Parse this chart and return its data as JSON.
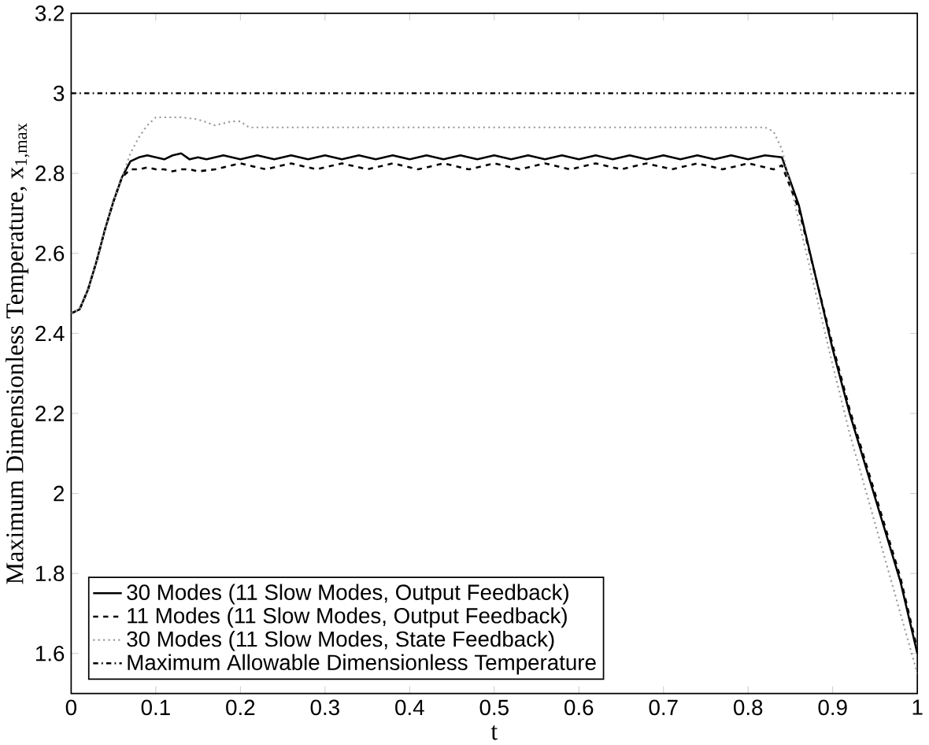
{
  "chart_data": {
    "type": "line",
    "xlabel": "t",
    "ylabel": "Maximum Dimensionless Temperature, x$_{1,max}$",
    "xlim": [
      0,
      1
    ],
    "ylim": [
      1.5,
      3.2
    ],
    "xticks": [
      0,
      0.1,
      0.2,
      0.3,
      0.4,
      0.5,
      0.6,
      0.7,
      0.8,
      0.9,
      1
    ],
    "yticks": [
      1.6,
      1.8,
      2,
      2.2,
      2.4,
      2.6,
      2.8,
      3,
      3.2
    ],
    "grid": false,
    "legend": "bottom left",
    "series": [
      {
        "name": "30 Modes (11 Slow Modes, Output Feedback)",
        "color": "#000000",
        "line_style": "solid",
        "x": [
          0,
          0.01,
          0.02,
          0.03,
          0.04,
          0.05,
          0.06,
          0.07,
          0.08,
          0.09,
          0.1,
          0.11,
          0.12,
          0.13,
          0.14,
          0.15,
          0.16,
          0.18,
          0.2,
          0.22,
          0.24,
          0.26,
          0.28,
          0.3,
          0.32,
          0.34,
          0.36,
          0.38,
          0.4,
          0.42,
          0.44,
          0.46,
          0.48,
          0.5,
          0.52,
          0.54,
          0.56,
          0.58,
          0.6,
          0.62,
          0.64,
          0.66,
          0.68,
          0.7,
          0.72,
          0.74,
          0.76,
          0.78,
          0.8,
          0.82,
          0.84,
          0.86,
          0.88,
          0.9,
          0.92,
          0.94,
          0.96,
          0.98,
          1
        ],
        "values": [
          2.45,
          2.46,
          2.51,
          2.58,
          2.66,
          2.73,
          2.79,
          2.83,
          2.84,
          2.845,
          2.84,
          2.835,
          2.845,
          2.85,
          2.835,
          2.84,
          2.835,
          2.845,
          2.835,
          2.845,
          2.835,
          2.845,
          2.835,
          2.845,
          2.835,
          2.845,
          2.835,
          2.845,
          2.835,
          2.845,
          2.835,
          2.845,
          2.835,
          2.845,
          2.835,
          2.845,
          2.835,
          2.845,
          2.835,
          2.845,
          2.835,
          2.845,
          2.835,
          2.845,
          2.835,
          2.845,
          2.835,
          2.845,
          2.835,
          2.845,
          2.84,
          2.72,
          2.54,
          2.36,
          2.2,
          2.06,
          1.92,
          1.78,
          1.6
        ]
      },
      {
        "name": "11 Modes (11 Slow Modes, Output Feedback)",
        "color": "#000000",
        "line_style": "dashed",
        "x": [
          0,
          0.01,
          0.02,
          0.03,
          0.04,
          0.05,
          0.06,
          0.07,
          0.08,
          0.09,
          0.1,
          0.11,
          0.12,
          0.13,
          0.14,
          0.15,
          0.17,
          0.2,
          0.23,
          0.26,
          0.29,
          0.32,
          0.35,
          0.38,
          0.41,
          0.44,
          0.47,
          0.5,
          0.53,
          0.56,
          0.59,
          0.62,
          0.65,
          0.68,
          0.71,
          0.74,
          0.77,
          0.8,
          0.83,
          0.84,
          0.86,
          0.88,
          0.9,
          0.92,
          0.94,
          0.96,
          0.98,
          1
        ],
        "values": [
          2.45,
          2.46,
          2.51,
          2.58,
          2.66,
          2.73,
          2.79,
          2.81,
          2.81,
          2.815,
          2.81,
          2.81,
          2.805,
          2.81,
          2.81,
          2.805,
          2.81,
          2.825,
          2.81,
          2.825,
          2.81,
          2.825,
          2.81,
          2.825,
          2.81,
          2.825,
          2.81,
          2.825,
          2.81,
          2.825,
          2.81,
          2.825,
          2.81,
          2.825,
          2.81,
          2.825,
          2.81,
          2.825,
          2.81,
          2.82,
          2.71,
          2.54,
          2.37,
          2.21,
          2.07,
          1.93,
          1.79,
          1.61
        ]
      },
      {
        "name": "30 Modes (11 Slow Modes, State Feedback)",
        "color": "#999999",
        "line_style": "dotted",
        "x": [
          0,
          0.01,
          0.02,
          0.03,
          0.04,
          0.05,
          0.06,
          0.07,
          0.08,
          0.09,
          0.1,
          0.11,
          0.13,
          0.15,
          0.17,
          0.19,
          0.2,
          0.21,
          0.3,
          0.4,
          0.5,
          0.6,
          0.7,
          0.82,
          0.83,
          0.84,
          0.86,
          0.88,
          0.9,
          0.92,
          0.94,
          0.96,
          0.98,
          1
        ],
        "values": [
          2.45,
          2.46,
          2.51,
          2.58,
          2.66,
          2.73,
          2.79,
          2.85,
          2.89,
          2.92,
          2.94,
          2.94,
          2.94,
          2.935,
          2.92,
          2.93,
          2.93,
          2.915,
          2.915,
          2.915,
          2.915,
          2.915,
          2.915,
          2.915,
          2.905,
          2.86,
          2.68,
          2.5,
          2.32,
          2.15,
          2.0,
          1.85,
          1.7,
          1.55
        ]
      }
    ],
    "ref_lines": [
      {
        "axis": "y",
        "value": 3,
        "label": "Maximum Allowable Dimensionless Temperature",
        "color": "#000000",
        "line_style": "dashdotted"
      }
    ]
  }
}
